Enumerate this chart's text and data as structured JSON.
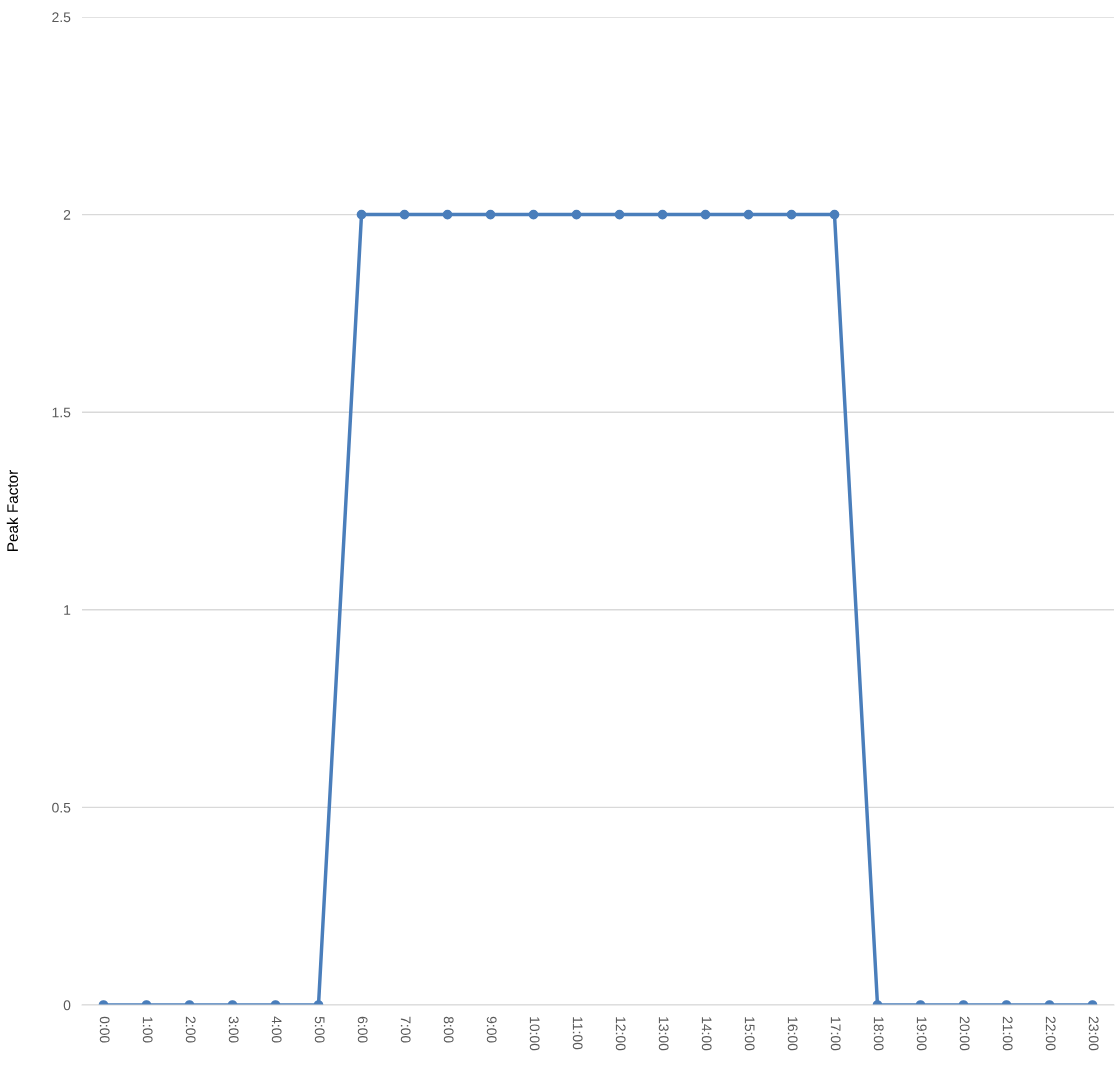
{
  "chart_data": {
    "type": "line",
    "ylabel": "Peak Factor",
    "categories": [
      "0:00",
      "1:00",
      "2:00",
      "3:00",
      "4:00",
      "5:00",
      "6:00",
      "7:00",
      "8:00",
      "9:00",
      "10:00",
      "11:00",
      "12:00",
      "13:00",
      "14:00",
      "15:00",
      "16:00",
      "17:00",
      "18:00",
      "19:00",
      "20:00",
      "21:00",
      "22:00",
      "23:00"
    ],
    "series": [
      {
        "color": "#4a7ebb",
        "values": [
          0,
          0,
          0,
          0,
          0,
          0,
          2,
          2,
          2,
          2,
          2,
          2,
          2,
          2,
          2,
          2,
          2,
          2,
          0,
          0,
          0,
          0,
          0,
          0
        ]
      }
    ],
    "ylim": [
      0,
      2.5
    ],
    "yticks": [
      0,
      0.5,
      1,
      1.5,
      2,
      2.5
    ],
    "grid": "y",
    "marker": "circle",
    "line_style": "solid",
    "legend": false
  }
}
